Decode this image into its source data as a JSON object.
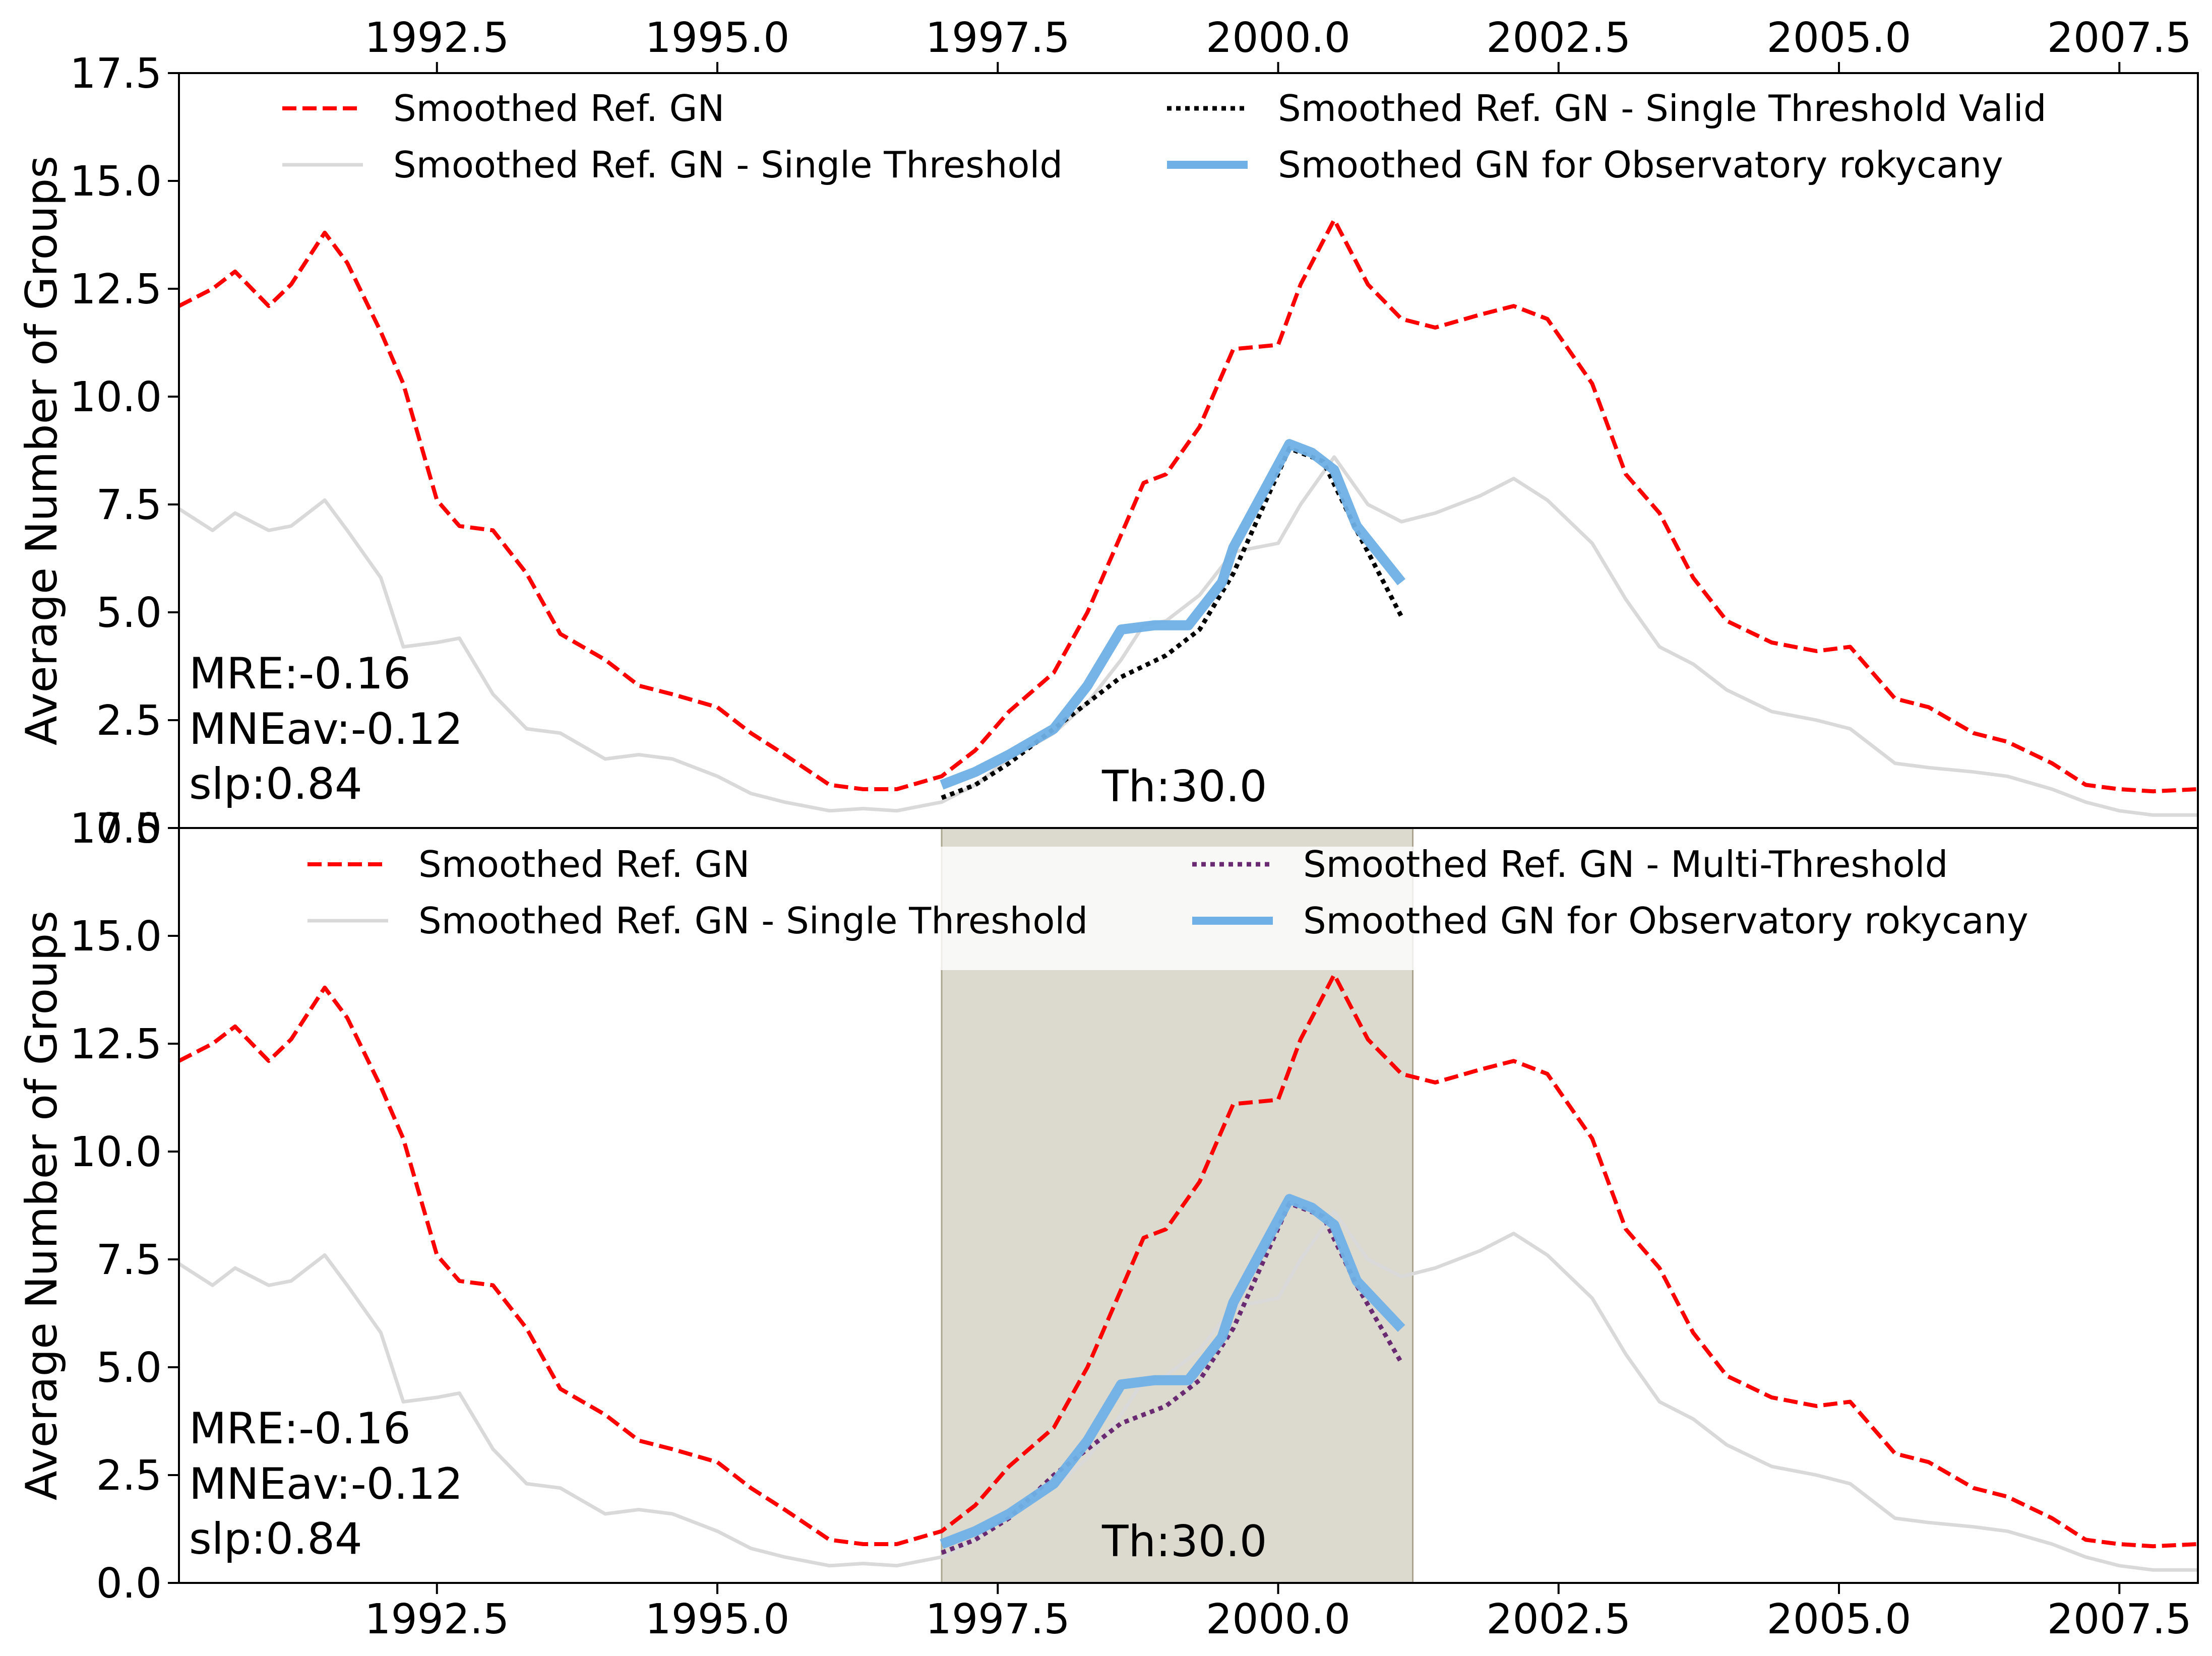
{
  "chart_data": [
    {
      "type": "line",
      "ylabel": "Average Number of Groups",
      "xlim": [
        1990.2,
        2008.2
      ],
      "ylim": [
        0,
        17.5
      ],
      "xticks": [
        1992.5,
        1995.0,
        1997.5,
        2000.0,
        2002.5,
        2005.0,
        2007.5
      ],
      "xtick_labels": [
        "1992.5",
        "1995.0",
        "1997.5",
        "2000.0",
        "2002.5",
        "2005.0",
        "2007.5"
      ],
      "yticks": [
        0,
        2.5,
        5,
        7.5,
        10,
        12.5,
        15,
        17.5
      ],
      "ytick_labels": [
        "0.0",
        "2.5",
        "5.0",
        "7.5",
        "10.0",
        "12.5",
        "15.0",
        "17.5"
      ],
      "xtick_position": "top",
      "grid": false,
      "legend": {
        "position": "top",
        "entries": [
          {
            "label": "Smoothed Ref. GN",
            "color": "#ff0000",
            "style": "dashed"
          },
          {
            "label": "Smoothed Ref. GN - Single Threshold",
            "color": "#d9d9d9",
            "style": "solid"
          },
          {
            "label": "Smoothed Ref. GN - Single Threshold Valid",
            "color": "#000000",
            "style": "dotted"
          },
          {
            "label": "Smoothed GN for Observatory rokycany",
            "color": "#6fb0e6",
            "style": "solid-thick"
          }
        ]
      },
      "stats_text": [
        "MRE:-0.16",
        "MNEav:-0.12",
        "slp:0.84"
      ],
      "threshold_label": "Th:30.0",
      "highlight_span": null,
      "series": [
        {
          "name": "Smoothed Ref. GN",
          "x": [
            1990.2,
            1990.5,
            1990.7,
            1991.0,
            1991.2,
            1991.5,
            1991.7,
            1992.0,
            1992.2,
            1992.5,
            1992.7,
            1993.0,
            1993.3,
            1993.6,
            1994.0,
            1994.3,
            1994.6,
            1995.0,
            1995.3,
            1995.6,
            1996.0,
            1996.3,
            1996.6,
            1997.0,
            1997.3,
            1997.6,
            1998.0,
            1998.3,
            1998.6,
            1998.8,
            1999.0,
            1999.3,
            1999.6,
            2000.0,
            2000.2,
            2000.5,
            2000.8,
            2001.1,
            2001.4,
            2001.8,
            2002.1,
            2002.4,
            2002.8,
            2003.1,
            2003.4,
            2003.7,
            2004.0,
            2004.4,
            2004.8,
            2005.1,
            2005.5,
            2005.8,
            2006.2,
            2006.5,
            2006.9,
            2007.2,
            2007.5,
            2007.8,
            2008.2
          ],
          "y": [
            12.1,
            12.5,
            12.9,
            12.1,
            12.6,
            13.8,
            13.1,
            11.5,
            10.3,
            7.6,
            7.0,
            6.9,
            5.9,
            4.5,
            3.9,
            3.3,
            3.1,
            2.8,
            2.2,
            1.7,
            1.0,
            0.9,
            0.9,
            1.2,
            1.8,
            2.7,
            3.6,
            5.0,
            6.8,
            8.0,
            8.2,
            9.3,
            11.1,
            11.2,
            12.6,
            14.1,
            12.6,
            11.8,
            11.6,
            11.9,
            12.1,
            11.8,
            10.3,
            8.2,
            7.3,
            5.8,
            4.8,
            4.3,
            4.1,
            4.2,
            3.0,
            2.8,
            2.2,
            2.0,
            1.5,
            1.0,
            0.9,
            0.85,
            0.9
          ]
        },
        {
          "name": "Smoothed Ref. GN - Single Threshold",
          "x": [
            1990.2,
            1990.5,
            1990.7,
            1991.0,
            1991.2,
            1991.5,
            1991.7,
            1992.0,
            1992.2,
            1992.5,
            1992.7,
            1993.0,
            1993.3,
            1993.6,
            1994.0,
            1994.3,
            1994.6,
            1995.0,
            1995.3,
            1995.6,
            1996.0,
            1996.3,
            1996.6,
            1997.0,
            1997.3,
            1997.6,
            1998.0,
            1998.3,
            1998.6,
            1998.8,
            1999.0,
            1999.3,
            1999.6,
            2000.0,
            2000.2,
            2000.5,
            2000.8,
            2001.1,
            2001.4,
            2001.8,
            2002.1,
            2002.4,
            2002.8,
            2003.1,
            2003.4,
            2003.7,
            2004.0,
            2004.4,
            2004.8,
            2005.1,
            2005.5,
            2005.8,
            2006.2,
            2006.5,
            2006.9,
            2007.2,
            2007.5,
            2007.8,
            2008.2
          ],
          "y": [
            7.4,
            6.9,
            7.3,
            6.9,
            7.0,
            7.6,
            6.9,
            5.8,
            4.2,
            4.3,
            4.4,
            3.1,
            2.3,
            2.2,
            1.6,
            1.7,
            1.6,
            1.2,
            0.8,
            0.6,
            0.4,
            0.45,
            0.4,
            0.6,
            1.0,
            1.6,
            2.2,
            2.9,
            3.9,
            4.7,
            4.8,
            5.4,
            6.4,
            6.6,
            7.5,
            8.6,
            7.5,
            7.1,
            7.3,
            7.7,
            8.1,
            7.6,
            6.6,
            5.3,
            4.2,
            3.8,
            3.2,
            2.7,
            2.5,
            2.3,
            1.5,
            1.4,
            1.3,
            1.2,
            0.9,
            0.6,
            0.4,
            0.3,
            0.3
          ]
        },
        {
          "name": "Smoothed Ref. GN - Single Threshold Valid",
          "x": [
            1997.0,
            1997.3,
            1997.6,
            1998.0,
            1998.3,
            1998.6,
            1999.0,
            1999.3,
            1999.6,
            2000.1,
            2000.4,
            2000.7,
            2001.1
          ],
          "y": [
            0.7,
            1.0,
            1.5,
            2.3,
            2.9,
            3.5,
            4.0,
            4.6,
            5.9,
            8.8,
            8.5,
            6.9,
            4.9
          ]
        },
        {
          "name": "Smoothed GN for Observatory rokycany",
          "x": [
            1997.0,
            1997.3,
            1997.6,
            1998.0,
            1998.3,
            1998.6,
            1998.9,
            1999.2,
            1999.5,
            1999.6,
            2000.1,
            2000.3,
            2000.5,
            2000.7,
            2001.1
          ],
          "y": [
            1.0,
            1.3,
            1.7,
            2.3,
            3.3,
            4.6,
            4.7,
            4.7,
            5.7,
            6.5,
            8.9,
            8.7,
            8.3,
            7.0,
            5.7
          ]
        }
      ]
    },
    {
      "type": "line",
      "ylabel": "Average Number of Groups",
      "xlim": [
        1990.2,
        2008.2
      ],
      "ylim": [
        0,
        17.5
      ],
      "xticks": [
        1992.5,
        1995.0,
        1997.5,
        2000.0,
        2002.5,
        2005.0,
        2007.5
      ],
      "xtick_labels": [
        "1992.5",
        "1995.0",
        "1997.5",
        "2000.0",
        "2002.5",
        "2005.0",
        "2007.5"
      ],
      "yticks": [
        0,
        2.5,
        5,
        7.5,
        10,
        12.5,
        15,
        17.5
      ],
      "ytick_labels": [
        "0.0",
        "2.5",
        "5.0",
        "7.5",
        "10.0",
        "12.5",
        "15.0",
        "17.5"
      ],
      "xtick_position": "bottom",
      "grid": false,
      "legend": {
        "position": "top",
        "entries": [
          {
            "label": "Smoothed Ref. GN",
            "color": "#ff0000",
            "style": "dashed"
          },
          {
            "label": "Smoothed Ref. GN - Single Threshold",
            "color": "#d9d9d9",
            "style": "solid"
          },
          {
            "label": "Smoothed Ref. GN - Multi-Threshold",
            "color": "#6a2a72",
            "style": "dotted"
          },
          {
            "label": "Smoothed GN for Observatory rokycany",
            "color": "#6fb0e6",
            "style": "solid-thick"
          }
        ]
      },
      "stats_text": [
        "MRE:-0.16",
        "MNEav:-0.12",
        "slp:0.84"
      ],
      "threshold_label": "Th:30.0",
      "highlight_span": {
        "x0": 1997.0,
        "x1": 2001.2,
        "color": "#cdcabb"
      },
      "series": [
        {
          "name": "Smoothed Ref. GN",
          "x": [
            1990.2,
            1990.5,
            1990.7,
            1991.0,
            1991.2,
            1991.5,
            1991.7,
            1992.0,
            1992.2,
            1992.5,
            1992.7,
            1993.0,
            1993.3,
            1993.6,
            1994.0,
            1994.3,
            1994.6,
            1995.0,
            1995.3,
            1995.6,
            1996.0,
            1996.3,
            1996.6,
            1997.0,
            1997.3,
            1997.6,
            1998.0,
            1998.3,
            1998.6,
            1998.8,
            1999.0,
            1999.3,
            1999.6,
            2000.0,
            2000.2,
            2000.5,
            2000.8,
            2001.1,
            2001.4,
            2001.8,
            2002.1,
            2002.4,
            2002.8,
            2003.1,
            2003.4,
            2003.7,
            2004.0,
            2004.4,
            2004.8,
            2005.1,
            2005.5,
            2005.8,
            2006.2,
            2006.5,
            2006.9,
            2007.2,
            2007.5,
            2007.8,
            2008.2
          ],
          "y": [
            12.1,
            12.5,
            12.9,
            12.1,
            12.6,
            13.8,
            13.1,
            11.5,
            10.3,
            7.6,
            7.0,
            6.9,
            5.9,
            4.5,
            3.9,
            3.3,
            3.1,
            2.8,
            2.2,
            1.7,
            1.0,
            0.9,
            0.9,
            1.2,
            1.8,
            2.7,
            3.6,
            5.0,
            6.8,
            8.0,
            8.2,
            9.3,
            11.1,
            11.2,
            12.6,
            14.1,
            12.6,
            11.8,
            11.6,
            11.9,
            12.1,
            11.8,
            10.3,
            8.2,
            7.3,
            5.8,
            4.8,
            4.3,
            4.1,
            4.2,
            3.0,
            2.8,
            2.2,
            2.0,
            1.5,
            1.0,
            0.9,
            0.85,
            0.9
          ]
        },
        {
          "name": "Smoothed Ref. GN - Single Threshold",
          "x": [
            1990.2,
            1990.5,
            1990.7,
            1991.0,
            1991.2,
            1991.5,
            1991.7,
            1992.0,
            1992.2,
            1992.5,
            1992.7,
            1993.0,
            1993.3,
            1993.6,
            1994.0,
            1994.3,
            1994.6,
            1995.0,
            1995.3,
            1995.6,
            1996.0,
            1996.3,
            1996.6,
            1997.0,
            1997.3,
            1997.6,
            1998.0,
            1998.3,
            1998.6,
            1998.8,
            1999.0,
            1999.3,
            1999.6,
            2000.0,
            2000.2,
            2000.5,
            2000.8,
            2001.1,
            2001.4,
            2001.8,
            2002.1,
            2002.4,
            2002.8,
            2003.1,
            2003.4,
            2003.7,
            2004.0,
            2004.4,
            2004.8,
            2005.1,
            2005.5,
            2005.8,
            2006.2,
            2006.5,
            2006.9,
            2007.2,
            2007.5,
            2007.8,
            2008.2
          ],
          "y": [
            7.4,
            6.9,
            7.3,
            6.9,
            7.0,
            7.6,
            6.9,
            5.8,
            4.2,
            4.3,
            4.4,
            3.1,
            2.3,
            2.2,
            1.6,
            1.7,
            1.6,
            1.2,
            0.8,
            0.6,
            0.4,
            0.45,
            0.4,
            0.6,
            1.0,
            1.6,
            2.2,
            2.9,
            3.9,
            4.7,
            4.8,
            5.4,
            6.4,
            6.6,
            7.5,
            8.6,
            7.5,
            7.1,
            7.3,
            7.7,
            8.1,
            7.6,
            6.6,
            5.3,
            4.2,
            3.8,
            3.2,
            2.7,
            2.5,
            2.3,
            1.5,
            1.4,
            1.3,
            1.2,
            0.9,
            0.6,
            0.4,
            0.3,
            0.3
          ]
        },
        {
          "name": "Smoothed Ref. GN - Multi-Threshold",
          "x": [
            1997.0,
            1997.3,
            1997.6,
            1998.0,
            1998.3,
            1998.6,
            1999.0,
            1999.3,
            1999.6,
            2000.1,
            2000.4,
            2000.7,
            2001.1
          ],
          "y": [
            0.7,
            1.0,
            1.5,
            2.5,
            3.1,
            3.7,
            4.1,
            4.7,
            5.9,
            8.8,
            8.5,
            6.9,
            5.1
          ]
        },
        {
          "name": "Smoothed GN for Observatory rokycany",
          "x": [
            1997.0,
            1997.3,
            1997.6,
            1998.0,
            1998.3,
            1998.6,
            1998.9,
            1999.2,
            1999.5,
            1999.6,
            2000.1,
            2000.3,
            2000.5,
            2000.7,
            2001.1
          ],
          "y": [
            0.9,
            1.2,
            1.6,
            2.3,
            3.3,
            4.6,
            4.7,
            4.7,
            5.7,
            6.5,
            8.9,
            8.7,
            8.3,
            7.0,
            5.9
          ]
        }
      ]
    }
  ]
}
